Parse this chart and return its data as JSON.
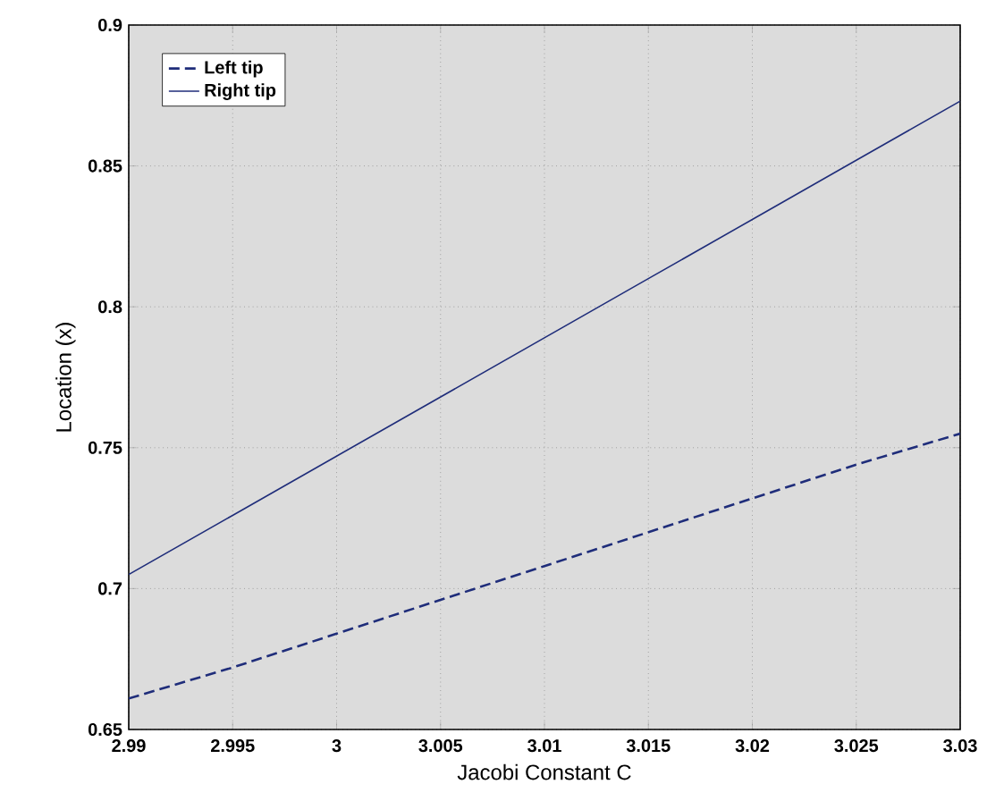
{
  "chart_data": {
    "type": "line",
    "xlabel": "Jacobi Constant C",
    "ylabel": "Location (x)",
    "x": [
      2.99,
      2.995,
      3.0,
      3.005,
      3.01,
      3.015,
      3.02,
      3.025,
      3.03
    ],
    "series": [
      {
        "name": "Left tip",
        "color": "#1f2d7a",
        "line_style": "dashed",
        "values": [
          0.661,
          0.672,
          0.684,
          0.696,
          0.708,
          0.72,
          0.732,
          0.744,
          0.755
        ]
      },
      {
        "name": "Right tip",
        "color": "#1f2d7a",
        "line_style": "solid",
        "values": [
          0.705,
          0.726,
          0.747,
          0.768,
          0.789,
          0.81,
          0.831,
          0.852,
          0.873
        ]
      }
    ],
    "xlim": [
      2.99,
      3.03
    ],
    "ylim": [
      0.65,
      0.9
    ],
    "xticks": [
      2.99,
      2.995,
      3,
      3.005,
      3.01,
      3.015,
      3.02,
      3.025,
      3.03
    ],
    "yticks": [
      0.65,
      0.7,
      0.75,
      0.8,
      0.85,
      0.9
    ],
    "grid": true,
    "legend": "top left"
  }
}
